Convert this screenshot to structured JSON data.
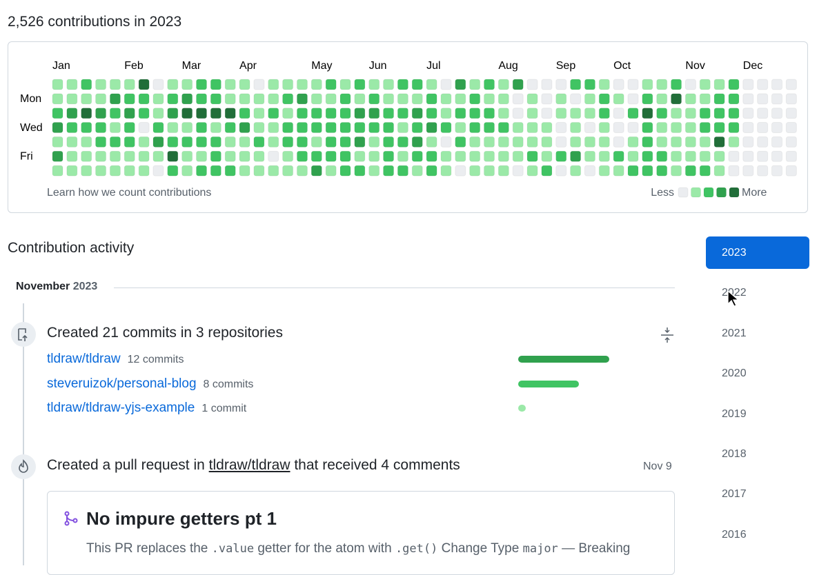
{
  "header": {
    "title": "2,526 contributions in 2023"
  },
  "calendar": {
    "months": [
      "Jan",
      "Feb",
      "Mar",
      "Apr",
      "May",
      "Jun",
      "Jul",
      "Aug",
      "Sep",
      "Oct",
      "Nov",
      "Dec"
    ],
    "days": [
      "Mon",
      "Wed",
      "Fri"
    ],
    "level_colors": [
      "#ebedf0",
      "#9be9a8",
      "#40c463",
      "#30a14e",
      "#216e39"
    ],
    "levels": [
      [
        1,
        1,
        2,
        1,
        1,
        1,
        4,
        0,
        1,
        1,
        2,
        2,
        1,
        1,
        0,
        1,
        1,
        1,
        1,
        2,
        1,
        2,
        1,
        1,
        2,
        2,
        1,
        0,
        3,
        1,
        2,
        1,
        3,
        0,
        0,
        0,
        2,
        2,
        1,
        0,
        0,
        1,
        1,
        2,
        0,
        1,
        1,
        2,
        0,
        0,
        0,
        0
      ],
      [
        1,
        1,
        1,
        1,
        3,
        2,
        2,
        1,
        2,
        3,
        2,
        2,
        1,
        1,
        1,
        1,
        2,
        3,
        1,
        1,
        2,
        1,
        2,
        1,
        1,
        1,
        2,
        1,
        1,
        2,
        1,
        1,
        0,
        1,
        0,
        1,
        0,
        1,
        2,
        1,
        0,
        2,
        1,
        4,
        1,
        1,
        2,
        2,
        0,
        0,
        0,
        0
      ],
      [
        2,
        3,
        4,
        3,
        2,
        3,
        2,
        1,
        3,
        4,
        4,
        4,
        4,
        2,
        1,
        2,
        1,
        2,
        2,
        2,
        2,
        3,
        3,
        2,
        2,
        3,
        2,
        1,
        2,
        2,
        2,
        1,
        0,
        1,
        0,
        1,
        1,
        1,
        2,
        0,
        2,
        4,
        2,
        1,
        1,
        2,
        2,
        2,
        0,
        0,
        0,
        0
      ],
      [
        3,
        2,
        2,
        2,
        1,
        2,
        0,
        2,
        1,
        1,
        2,
        1,
        2,
        3,
        1,
        1,
        2,
        2,
        2,
        2,
        2,
        2,
        2,
        2,
        1,
        2,
        3,
        2,
        1,
        2,
        2,
        2,
        1,
        1,
        1,
        0,
        1,
        0,
        1,
        0,
        0,
        2,
        1,
        1,
        1,
        2,
        2,
        2,
        0,
        0,
        0,
        0
      ],
      [
        1,
        1,
        1,
        2,
        2,
        2,
        1,
        3,
        2,
        2,
        2,
        2,
        1,
        1,
        2,
        1,
        2,
        2,
        1,
        2,
        2,
        3,
        1,
        2,
        2,
        3,
        1,
        0,
        2,
        1,
        1,
        1,
        1,
        1,
        1,
        0,
        1,
        1,
        1,
        0,
        1,
        2,
        1,
        1,
        1,
        1,
        4,
        1,
        0,
        0,
        0,
        0
      ],
      [
        3,
        1,
        1,
        1,
        1,
        1,
        1,
        1,
        4,
        1,
        1,
        2,
        1,
        1,
        1,
        0,
        1,
        2,
        2,
        2,
        2,
        1,
        1,
        2,
        1,
        2,
        2,
        1,
        1,
        1,
        1,
        1,
        1,
        2,
        1,
        2,
        3,
        1,
        1,
        2,
        1,
        2,
        2,
        1,
        1,
        1,
        1,
        0,
        0,
        0,
        0,
        0
      ],
      [
        1,
        1,
        1,
        1,
        1,
        1,
        1,
        0,
        2,
        1,
        2,
        2,
        2,
        1,
        1,
        1,
        1,
        1,
        3,
        1,
        2,
        2,
        1,
        2,
        2,
        1,
        2,
        1,
        0,
        1,
        1,
        1,
        0,
        1,
        2,
        0,
        1,
        0,
        1,
        1,
        2,
        2,
        2,
        1,
        2,
        2,
        1,
        0,
        0,
        0,
        0,
        0
      ]
    ],
    "learn_link": "Learn how we count contributions",
    "less": "Less",
    "more": "More"
  },
  "activity": {
    "title": "Contribution activity",
    "month": "November",
    "year": "2023",
    "commits": {
      "title": "Created 21 commits in 3 repositories",
      "repos": [
        {
          "name": "tldraw/tldraw",
          "commits": 12,
          "label": "12 commits",
          "color": "#30a14e"
        },
        {
          "name": "steveruizok/personal-blog",
          "commits": 8,
          "label": "8 commits",
          "color": "#40c463"
        },
        {
          "name": "tldraw/tldraw-yjs-example",
          "commits": 1,
          "label": "1 commit",
          "color": "#9be9a8"
        }
      ]
    },
    "pull_request": {
      "before": "Created a pull request in ",
      "repo": "tldraw/tldraw",
      "after": " that received 4 comments",
      "date": "Nov 9",
      "title": "No impure getters pt 1",
      "body": [
        "This PR replaces the ",
        ".value",
        " getter for the atom with ",
        ".get()",
        " Change Type ",
        "major",
        " — Breaking"
      ]
    }
  },
  "years": [
    "2023",
    "2022",
    "2021",
    "2020",
    "2019",
    "2018",
    "2017",
    "2016"
  ]
}
